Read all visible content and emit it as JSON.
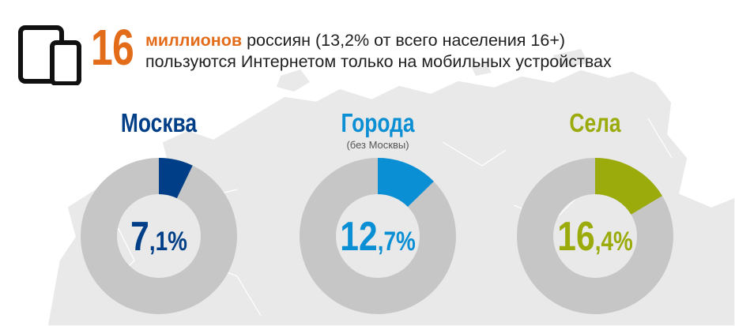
{
  "headline": {
    "number": "16",
    "emphasis": "миллионов",
    "line1_rest": " россиян (13,2% от всего населения 16+)",
    "line2": "пользуются Интернетом только на мобильных устройствах",
    "device_icon": "tablet-and-phone-icon"
  },
  "colors": {
    "orange": "#e36c1b",
    "moscow": "#003f87",
    "cities": "#0b8fd4",
    "villages": "#9aab0b",
    "ring_gray": "#c6c6c6",
    "map_gray": "#e8e8e8"
  },
  "groups": [
    {
      "title": "Москва",
      "subtitle": ""
    },
    {
      "title": "Города",
      "subtitle": "(без Москвы)"
    },
    {
      "title": "Села",
      "subtitle": ""
    }
  ],
  "chart_data": [
    {
      "type": "pie",
      "variant": "donut",
      "category": "Москва",
      "value": 7.1,
      "unit": "%",
      "label_int": "7",
      "label_dec": ",1%",
      "color": "#003f87"
    },
    {
      "type": "pie",
      "variant": "donut",
      "category": "Города",
      "value": 12.7,
      "unit": "%",
      "label_int": "12",
      "label_dec": ",7%",
      "color": "#0b8fd4"
    },
    {
      "type": "pie",
      "variant": "donut",
      "category": "Села",
      "value": 16.4,
      "unit": "%",
      "label_int": "16",
      "label_dec": ",4%",
      "color": "#9aab0b"
    }
  ]
}
